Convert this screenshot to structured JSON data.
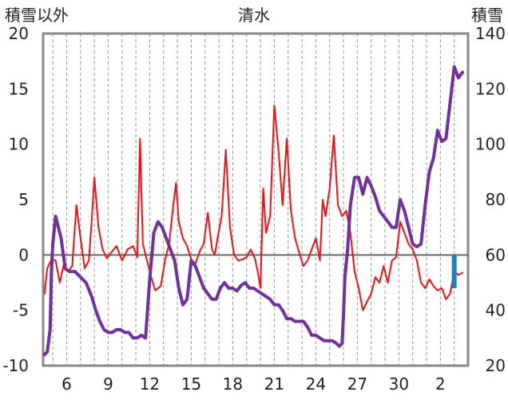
{
  "chart_data": {
    "type": "line",
    "title": "清水",
    "ylabel_left": "積雪以外",
    "ylabel_right": "積雪",
    "x_tick_labels": [
      "6",
      "9",
      "12",
      "15",
      "18",
      "21",
      "24",
      "27",
      "30",
      "2"
    ],
    "x_tick_days": [
      6,
      9,
      12,
      15,
      18,
      21,
      24,
      27,
      30,
      33
    ],
    "xlim": [
      4.3,
      35.0
    ],
    "grid": "dashed vertical lines each day",
    "left_axis": {
      "ylim": [
        -10,
        20
      ],
      "ticks": [
        "20",
        "15",
        "10",
        "5",
        "0",
        "-5",
        "-10"
      ]
    },
    "right_axis": {
      "ylim": [
        20,
        140
      ],
      "ticks": [
        "140",
        "120",
        "100",
        "80",
        "60",
        "40",
        "20"
      ]
    },
    "series": [
      {
        "key": "other",
        "axis": "left",
        "color": "#ee1111",
        "x": [
          4.4,
          4.6,
          4.9,
          5.2,
          5.5,
          5.8,
          6.1,
          6.4,
          6.7,
          7.0,
          7.3,
          7.6,
          7.8,
          8.0,
          8.3,
          8.6,
          8.9,
          9.2,
          9.6,
          10.0,
          10.4,
          10.8,
          11.1,
          11.3,
          11.5,
          11.8,
          12.1,
          12.4,
          12.8,
          13.1,
          13.4,
          13.7,
          13.9,
          14.1,
          14.4,
          14.7,
          15.0,
          15.3,
          15.6,
          15.9,
          16.2,
          16.5,
          16.7,
          16.9,
          17.2,
          17.5,
          17.8,
          18.1,
          18.4,
          18.7,
          19.0,
          19.3,
          19.6,
          19.8,
          20.0,
          20.2,
          20.4,
          20.7,
          21.0,
          21.3,
          21.6,
          21.9,
          22.2,
          22.5,
          22.8,
          23.1,
          23.4,
          23.7,
          24.0,
          24.3,
          24.5,
          24.7,
          25.0,
          25.3,
          25.6,
          25.9,
          26.2,
          26.5,
          26.8,
          27.1,
          27.4,
          27.7,
          28.0,
          28.3,
          28.6,
          28.9,
          29.2,
          29.5,
          29.8,
          30.1,
          30.4,
          30.7,
          31.0,
          31.3,
          31.6,
          31.9,
          32.2,
          32.5,
          32.8,
          33.1,
          33.4,
          33.7,
          34.0,
          34.3,
          34.6
        ],
        "y": [
          -3.5,
          -1.2,
          -0.4,
          -0.5,
          -2.5,
          -0.8,
          -1.5,
          -1.0,
          4.5,
          1.5,
          -1.2,
          -0.5,
          3.0,
          7.0,
          2.5,
          0.5,
          -0.3,
          0.2,
          0.8,
          -0.5,
          0.5,
          0.8,
          -0.2,
          10.5,
          1.0,
          -0.5,
          -2.0,
          -3.2,
          -2.8,
          -0.5,
          1.0,
          4.5,
          6.5,
          3.0,
          1.5,
          0.8,
          -0.4,
          -0.8,
          0.3,
          1.0,
          3.8,
          0.5,
          0.0,
          1.5,
          3.5,
          9.5,
          2.5,
          0.0,
          -0.5,
          -0.4,
          -0.2,
          0.5,
          -0.3,
          -1.5,
          -3.0,
          6.0,
          2.0,
          3.5,
          13.5,
          9.5,
          4.5,
          10.5,
          4.0,
          1.5,
          0.2,
          -1.0,
          -0.5,
          0.5,
          1.5,
          -0.5,
          5.0,
          3.5,
          6.0,
          10.8,
          4.5,
          3.5,
          4.0,
          2.0,
          -1.5,
          -3.0,
          -5.0,
          -4.2,
          -3.5,
          -2.0,
          -2.5,
          -1.0,
          -2.5,
          -0.5,
          -0.2,
          3.0,
          2.0,
          1.0,
          0.5,
          -0.5,
          -2.5,
          -3.0,
          -2.2,
          -2.8,
          -3.2,
          -3.0,
          -4.0,
          -3.5,
          -1.5,
          -1.8,
          -1.6
        ]
      },
      {
        "key": "snow",
        "axis": "right",
        "color": "#7030a0",
        "x": [
          4.4,
          4.6,
          4.8,
          4.9,
          5.0,
          5.2,
          5.4,
          5.6,
          5.9,
          6.2,
          6.6,
          7.0,
          7.4,
          7.8,
          8.1,
          8.4,
          8.7,
          9.0,
          9.3,
          9.6,
          9.9,
          10.2,
          10.5,
          10.8,
          11.1,
          11.4,
          11.7,
          12.0,
          12.3,
          12.6,
          12.9,
          13.2,
          13.5,
          13.8,
          14.1,
          14.4,
          14.7,
          15.0,
          15.3,
          15.6,
          15.9,
          16.2,
          16.5,
          16.8,
          17.1,
          17.4,
          17.7,
          18.0,
          18.3,
          18.6,
          18.9,
          19.2,
          19.5,
          19.8,
          20.1,
          20.4,
          20.7,
          21.0,
          21.3,
          21.6,
          21.9,
          22.2,
          22.5,
          22.8,
          23.1,
          23.4,
          23.7,
          24.0,
          24.3,
          24.6,
          24.9,
          25.2,
          25.5,
          25.7,
          25.9,
          26.0,
          26.1,
          26.3,
          26.5,
          26.8,
          27.1,
          27.4,
          27.7,
          28.0,
          28.3,
          28.6,
          28.9,
          29.2,
          29.5,
          29.8,
          30.1,
          30.4,
          30.7,
          31.0,
          31.3,
          31.6,
          31.9,
          32.2,
          32.5,
          32.8,
          33.1,
          33.4,
          33.7,
          34.0,
          34.3,
          34.6
        ],
        "y": [
          24,
          25,
          33,
          54,
          64,
          74,
          70,
          66,
          55,
          54,
          54,
          52,
          50,
          45,
          40,
          36,
          33,
          32,
          32,
          33,
          33,
          32,
          32,
          30,
          30,
          31,
          30,
          51,
          68,
          72,
          70,
          66,
          62,
          58,
          48,
          42,
          44,
          58,
          56,
          52,
          48,
          46,
          44,
          44,
          48,
          50,
          48,
          48,
          47,
          49,
          50,
          48,
          48,
          47,
          46,
          45,
          44,
          42,
          42,
          40,
          37,
          37,
          36,
          36,
          36,
          34,
          31,
          31,
          30,
          29,
          29,
          29,
          28,
          27,
          28,
          38,
          52,
          62,
          78,
          88,
          88,
          82,
          88,
          85,
          81,
          76,
          74,
          72,
          70,
          70,
          80,
          76,
          70,
          64,
          63,
          64,
          78,
          90,
          95,
          105,
          101,
          102,
          115,
          128,
          124,
          126
        ]
      },
      {
        "key": "bar",
        "axis": "right",
        "type": "bar",
        "color": "#1f7fc0",
        "x": [
          34.0
        ],
        "y": [
          60
        ],
        "baseline": 48
      }
    ]
  }
}
